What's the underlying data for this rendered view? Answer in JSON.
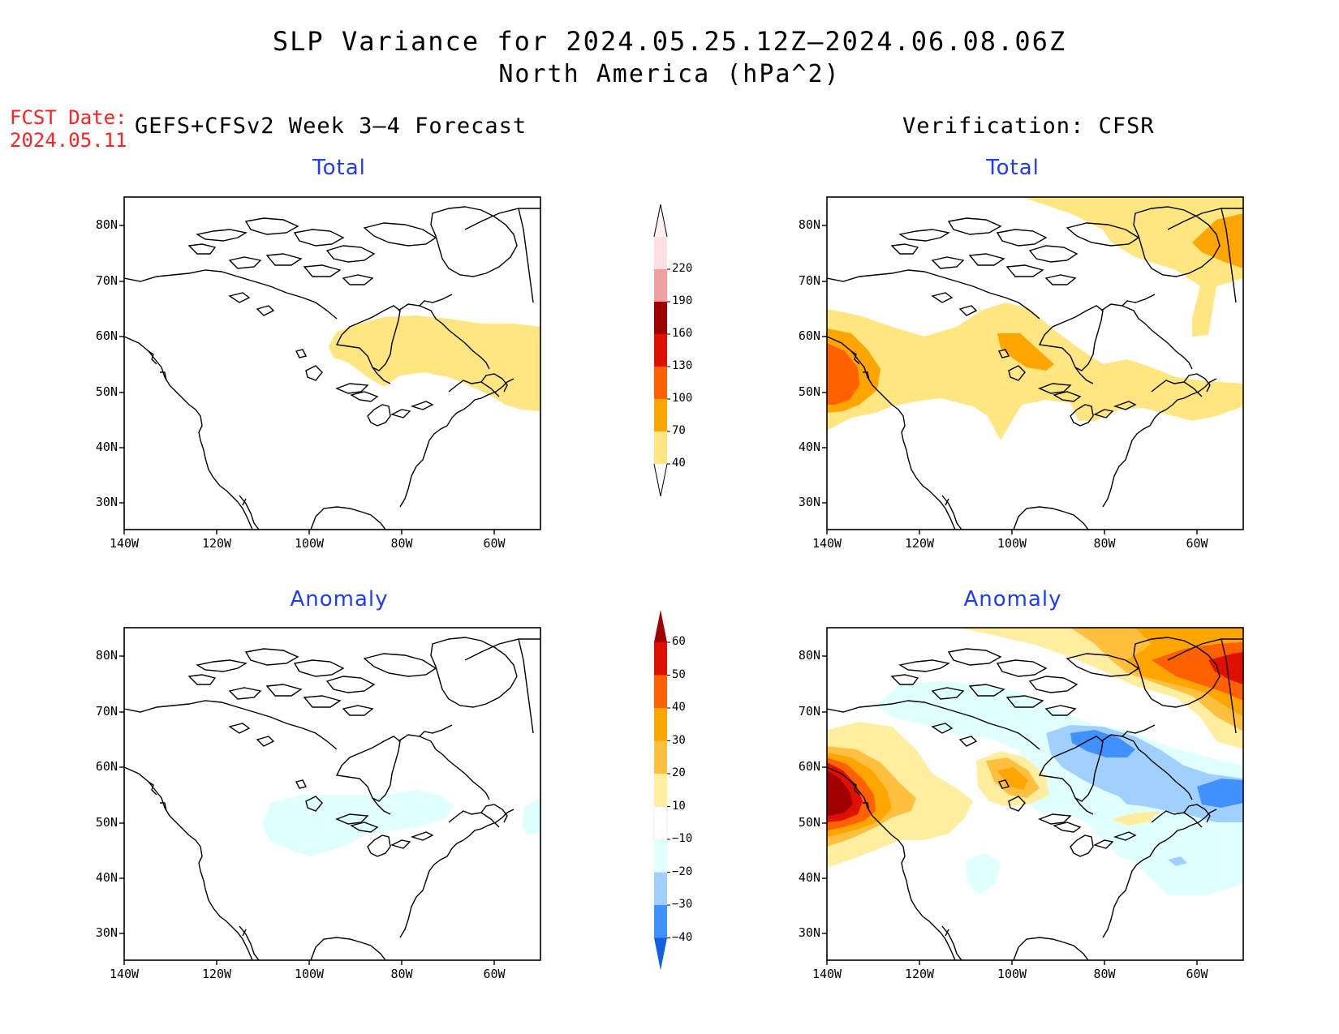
{
  "title": {
    "line1": "SLP Variance for 2024.05.25.12Z–2024.06.08.06Z",
    "line2": "North America (hPa^2)"
  },
  "forecast_info": {
    "label": "FCST Date:",
    "date": "2024.05.11",
    "model": "GEFS+CFSv2 Week 3–4 Forecast"
  },
  "verification": {
    "label": "Verification: CFSR"
  },
  "panels": {
    "fcst_total": {
      "title": "Total"
    },
    "fcst_anom": {
      "title": "Anomaly"
    },
    "verif_total": {
      "title": "Total"
    },
    "verif_anom": {
      "title": "Anomaly"
    }
  },
  "axes": {
    "lon_labels": [
      "140W",
      "120W",
      "100W",
      "80W",
      "60W"
    ],
    "lat_labels": [
      "80N",
      "70N",
      "60N",
      "50N",
      "40N",
      "30N"
    ]
  },
  "colorbars": {
    "total": {
      "levels": [
        "40",
        "70",
        "100",
        "130",
        "160",
        "190",
        "220"
      ],
      "colors": [
        "#ffe680",
        "#ffa500",
        "#ff6000",
        "#e01000",
        "#a00000",
        "#f0a0a0",
        "#ffe0e0"
      ]
    },
    "anomaly": {
      "levels": [
        "60",
        "50",
        "40",
        "30",
        "20",
        "10",
        "−10",
        "−20",
        "−30",
        "−40"
      ],
      "colors_top_to_bottom": [
        "#a00000",
        "#e01000",
        "#ff6000",
        "#ffa500",
        "#ffc040",
        "#ffeea0",
        "#ffffff",
        "#e0ffff",
        "#a0d0ff",
        "#4090ff",
        "#1060e0"
      ]
    }
  },
  "colors": {
    "title_blue": "#1e3cff",
    "fcst_red": "#ff2020"
  }
}
